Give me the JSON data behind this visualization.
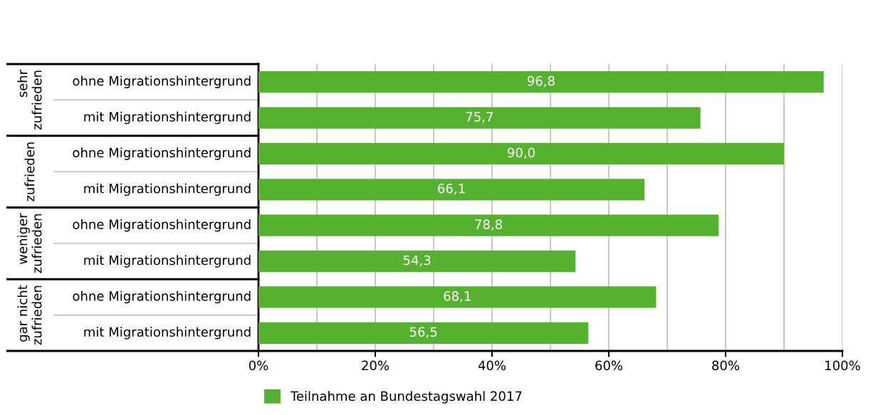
{
  "chart_data": {
    "type": "bar",
    "orientation": "horizontal",
    "categories": [
      "ohne Migrationshintergrund",
      "mit Migrationshintergrund",
      "ohne Migrationshintergrund",
      "mit Migrationshintergrund",
      "ohne Migrationshintergrund",
      "mit Migrationshintergrund",
      "ohne Migrationshintergrund",
      "mit Migrationshintergrund"
    ],
    "series": [
      {
        "name": "Teilnahme an Bundestagswahl 2017",
        "color": "#56b131",
        "values": [
          96.8,
          75.7,
          90.0,
          66.1,
          78.8,
          54.3,
          68.1,
          56.5
        ],
        "value_labels": [
          "96,8",
          "75,7",
          "90,0",
          "66,1",
          "78,8",
          "54,3",
          "68,1",
          "56,5"
        ]
      }
    ],
    "annotations": [
      "sehr\nzufrieden",
      "zufrieden",
      "weniger\nzufrieden",
      "gar nicht\nzufrieden"
    ],
    "xlim": [
      0,
      100
    ],
    "xticks": [
      {
        "value": 0,
        "label": "0%"
      },
      {
        "value": 10,
        "label": null
      },
      {
        "value": 20,
        "label": "20%"
      },
      {
        "value": 30,
        "label": null
      },
      {
        "value": 40,
        "label": "40%"
      },
      {
        "value": 50,
        "label": null
      },
      {
        "value": 60,
        "label": "60%"
      },
      {
        "value": 70,
        "label": null
      },
      {
        "value": 80,
        "label": "80%"
      },
      {
        "value": 90,
        "label": null
      },
      {
        "value": 100,
        "label": "100%"
      }
    ],
    "grid": "x",
    "legend": "bottom"
  }
}
